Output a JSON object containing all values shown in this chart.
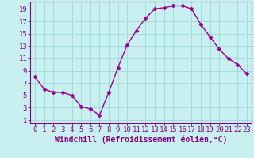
{
  "x": [
    0,
    1,
    2,
    3,
    4,
    5,
    6,
    7,
    8,
    9,
    10,
    11,
    12,
    13,
    14,
    15,
    16,
    17,
    18,
    19,
    20,
    21,
    22,
    23
  ],
  "y": [
    8.0,
    6.0,
    5.5,
    5.5,
    5.0,
    3.2,
    2.8,
    1.8,
    5.5,
    9.5,
    13.2,
    15.5,
    17.5,
    19.0,
    19.2,
    19.5,
    19.5,
    19.0,
    16.5,
    14.5,
    12.5,
    11.0,
    10.0,
    8.5
  ],
  "line_color": "#990099",
  "marker": "D",
  "markersize": 2.5,
  "linewidth": 1.0,
  "background_color": "#c8f0f0",
  "grid_color": "#a0d8d8",
  "xlabel": "Windchill (Refroidissement éolien,°C)",
  "xlabel_fontsize": 7,
  "xtick_labels": [
    "0",
    "1",
    "2",
    "3",
    "4",
    "5",
    "6",
    "7",
    "8",
    "9",
    "10",
    "11",
    "12",
    "13",
    "14",
    "15",
    "16",
    "17",
    "18",
    "19",
    "20",
    "21",
    "22",
    "23"
  ],
  "ytick_values": [
    1,
    3,
    5,
    7,
    9,
    11,
    13,
    15,
    17,
    19
  ],
  "xlim": [
    -0.5,
    23.5
  ],
  "ylim": [
    0.5,
    20.2
  ],
  "tick_fontsize": 6.5,
  "text_color": "#880088"
}
